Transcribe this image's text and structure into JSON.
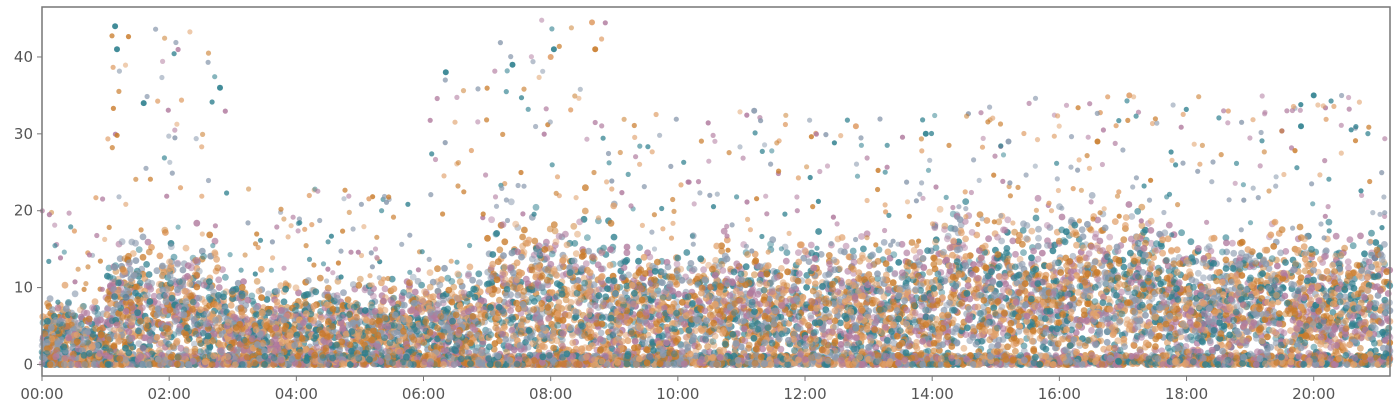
{
  "chart_data": {
    "type": "scatter",
    "title": "",
    "xlabel": "",
    "ylabel": "",
    "x_range_hours": [
      0,
      21.2
    ],
    "ylim": [
      -1.5,
      46.5
    ],
    "grid": false,
    "legend": "none",
    "x_ticks": [
      "00:00",
      "02:00",
      "04:00",
      "06:00",
      "08:00",
      "10:00",
      "12:00",
      "14:00",
      "16:00",
      "18:00",
      "20:00"
    ],
    "y_ticks": [
      0,
      10,
      20,
      30,
      40
    ],
    "series_colors": [
      "#2e7f8e",
      "#c97b2a",
      "#b07a9e",
      "#8a9aae",
      "#e0a06a"
    ],
    "activity_profile": [
      {
        "start": 0.0,
        "end": 1.0,
        "base": 3,
        "spread": 5,
        "peak": 22
      },
      {
        "start": 1.0,
        "end": 2.9,
        "base": 6,
        "spread": 9,
        "peak": 44
      },
      {
        "start": 2.9,
        "end": 6.0,
        "base": 4,
        "spread": 6,
        "peak": 23
      },
      {
        "start": 6.0,
        "end": 7.0,
        "base": 5,
        "spread": 7,
        "peak": 38
      },
      {
        "start": 7.0,
        "end": 9.0,
        "base": 7,
        "spread": 11,
        "peak": 45
      },
      {
        "start": 9.0,
        "end": 12.0,
        "base": 6,
        "spread": 8,
        "peak": 33
      },
      {
        "start": 12.0,
        "end": 14.0,
        "base": 6,
        "spread": 9,
        "peak": 32
      },
      {
        "start": 14.0,
        "end": 17.5,
        "base": 8,
        "spread": 10,
        "peak": 35
      },
      {
        "start": 17.5,
        "end": 21.2,
        "base": 7,
        "spread": 9,
        "peak": 35
      }
    ],
    "notable_points": [
      {
        "x": 1.15,
        "y": 44,
        "series": 0
      },
      {
        "x": 1.18,
        "y": 41,
        "series": 0
      },
      {
        "x": 1.6,
        "y": 34,
        "series": 0
      },
      {
        "x": 2.8,
        "y": 36,
        "series": 0
      },
      {
        "x": 6.35,
        "y": 38,
        "series": 0
      },
      {
        "x": 7.4,
        "y": 39,
        "series": 0
      },
      {
        "x": 8.05,
        "y": 41,
        "series": 0
      },
      {
        "x": 8.0,
        "y": 40,
        "series": 4
      },
      {
        "x": 8.65,
        "y": 44.5,
        "series": 4
      },
      {
        "x": 8.7,
        "y": 41,
        "series": 1
      },
      {
        "x": 11.2,
        "y": 33,
        "series": 3
      },
      {
        "x": 12.8,
        "y": 31,
        "series": 4
      },
      {
        "x": 13.9,
        "y": 30,
        "series": 0
      },
      {
        "x": 15.2,
        "y": 29,
        "series": 3
      },
      {
        "x": 16.6,
        "y": 29,
        "series": 1
      },
      {
        "x": 17.1,
        "y": 35,
        "series": 4
      },
      {
        "x": 19.8,
        "y": 31,
        "series": 0
      },
      {
        "x": 20.0,
        "y": 35,
        "series": 0
      }
    ]
  }
}
